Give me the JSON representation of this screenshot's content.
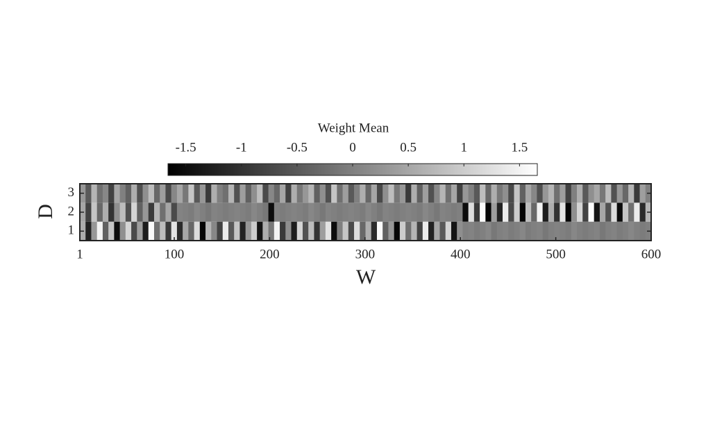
{
  "chart_data": {
    "type": "heatmap",
    "xlabel": "W",
    "ylabel": "D",
    "xlim": [
      1,
      600
    ],
    "xticks": [
      1,
      100,
      200,
      300,
      400,
      500,
      600
    ],
    "ylim": [
      0.5,
      3.5
    ],
    "yticks": [
      1,
      2,
      3
    ],
    "y": [
      1,
      2,
      3
    ],
    "values": [
      [
        0.6,
        -1.2,
        0.3,
        1.5,
        -0.4,
        0.9,
        -1.5,
        0.2,
        1.1,
        -0.7,
        0.4,
        -1.3,
        1.6,
        -0.2,
        0.8,
        -0.9,
        1.3,
        -1.1,
        0.5,
        -0.3,
        1.2,
        -1.6,
        0.7,
        0.1,
        -0.8,
        1.4,
        -0.5,
        0.9,
        -1.2,
        0.3,
        1.0,
        -1.4,
        0.6,
        -0.1,
        1.5,
        -0.9,
        0.2,
        -1.3,
        1.1,
        -0.6,
        0.8,
        -1.0,
        0.4,
        1.3,
        -1.5,
        0.0,
        0.9,
        -0.7,
        1.2,
        -0.3,
        0.6,
        -1.1,
        1.6,
        -0.4,
        0.3,
        -1.6,
        1.0,
        -0.2,
        0.7,
        -0.8,
        1.4,
        -1.2,
        0.5,
        -0.5,
        1.1,
        -1.4,
        0.2,
        0.0,
        0.05,
        -0.05,
        0.0,
        0.1,
        -0.1,
        0.0,
        0.05,
        -0.05,
        0.0,
        0.1,
        -0.05,
        0.0,
        0.05,
        -0.1,
        0.0,
        0.05,
        0.0,
        -0.05,
        0.1,
        0.0,
        -0.05,
        0.0,
        0.05,
        -0.1,
        0.0,
        0.05,
        -0.05,
        0.0,
        0.1,
        0.0,
        -0.05,
        0.0
      ],
      [
        0.5,
        -0.8,
        0.9,
        -0.3,
        0.6,
        -1.0,
        0.2,
        0.8,
        -0.6,
        1.1,
        -0.4,
        0.3,
        -0.9,
        0.7,
        -0.2,
        0.5,
        -0.7,
        0.05,
        0.0,
        -0.05,
        0.1,
        0.0,
        -0.1,
        0.05,
        0.0,
        -0.05,
        0.0,
        0.05,
        0.0,
        -0.05,
        0.1,
        0.0,
        -0.1,
        -1.5,
        0.0,
        -0.05,
        0.0,
        0.05,
        0.0,
        -0.05,
        0.1,
        0.0,
        -0.1,
        0.05,
        0.0,
        -0.05,
        0.0,
        0.05,
        0.0,
        -0.05,
        0.1,
        0.0,
        -0.1,
        0.05,
        0.0,
        -0.05,
        0.0,
        0.05,
        0.0,
        -0.05,
        0.1,
        0.0,
        -0.1,
        0.05,
        0.0,
        -0.05,
        0.0,
        -1.5,
        1.2,
        -0.9,
        1.6,
        -1.6,
        0.4,
        -1.2,
        1.4,
        -0.7,
        1.0,
        -1.6,
        0.8,
        -0.3,
        1.5,
        -1.3,
        0.6,
        -1.0,
        1.3,
        -1.6,
        0.2,
        1.1,
        -0.8,
        1.6,
        -1.4,
        0.5,
        -0.6,
        1.2,
        -1.5,
        0.9,
        -0.2,
        1.4,
        -1.1,
        0.7
      ],
      [
        0.3,
        -0.5,
        0.7,
        -0.2,
        0.1,
        -0.8,
        0.5,
        0.0,
        -0.4,
        0.6,
        -0.6,
        0.2,
        0.8,
        -0.3,
        0.4,
        -0.7,
        0.1,
        0.5,
        -0.1,
        0.9,
        -0.5,
        0.3,
        -0.9,
        0.6,
        0.0,
        -0.2,
        0.7,
        -0.6,
        0.4,
        -0.4,
        0.2,
        0.8,
        -0.7,
        0.1,
        -0.3,
        0.5,
        -0.8,
        0.6,
        -0.1,
        0.3,
        0.7,
        -0.4,
        0.2,
        -0.6,
        0.9,
        -0.2,
        0.4,
        -0.5,
        0.0,
        0.6,
        -0.3,
        0.5,
        -0.7,
        0.2,
        0.8,
        -0.1,
        0.3,
        -0.9,
        0.6,
        -0.4,
        0.4,
        -0.6,
        0.1,
        0.7,
        -0.2,
        0.5,
        -0.8,
        0.3,
        0.0,
        -0.5,
        0.8,
        -0.3,
        0.6,
        -0.1,
        0.2,
        -0.7,
        0.9,
        -0.4,
        0.5,
        0.1,
        -0.6,
        0.3,
        0.7,
        -0.2,
        0.4,
        -0.8,
        0.0,
        0.6,
        -0.5,
        0.2,
        0.5,
        -0.1,
        0.8,
        -0.6,
        0.3,
        -0.3,
        0.7,
        -0.9,
        0.4,
        0.0
      ]
    ],
    "colorbar": {
      "label": "Weight Mean",
      "clim": [
        -1.66,
        1.66
      ],
      "ticks": [
        -1.5,
        -1,
        -0.5,
        0,
        0.5,
        1,
        1.5
      ]
    }
  }
}
